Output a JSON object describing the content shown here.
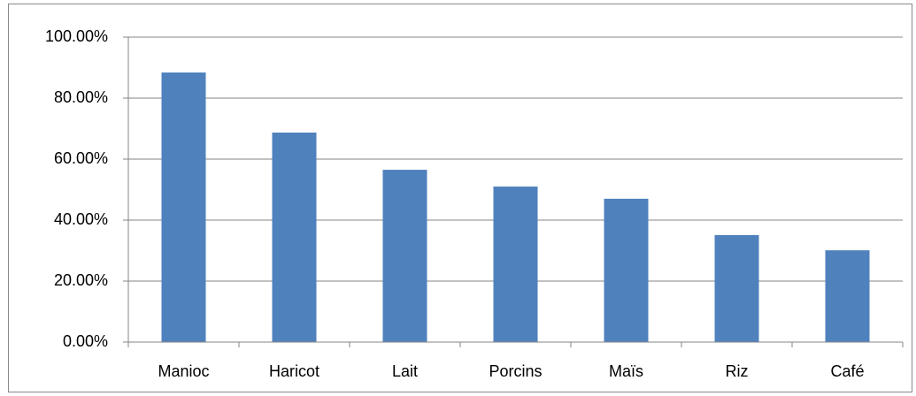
{
  "chart_data": {
    "type": "bar",
    "categories": [
      "Manioc",
      "Haricot",
      "Lait",
      "Porcins",
      "Maïs",
      "Riz",
      "Café"
    ],
    "values": [
      88.4,
      68.7,
      56.5,
      51.0,
      47.0,
      35.1,
      30.1
    ],
    "color": "#4f81bd",
    "ylim": [
      0,
      100
    ],
    "yticks": [
      {
        "value": 0,
        "label": "0.00%"
      },
      {
        "value": 20,
        "label": "20.00%"
      },
      {
        "value": 40,
        "label": "40.00%"
      },
      {
        "value": 60,
        "label": "60.00%"
      },
      {
        "value": 80,
        "label": "80.00%"
      },
      {
        "value": 100,
        "label": "100.00%"
      }
    ],
    "grid": true
  }
}
